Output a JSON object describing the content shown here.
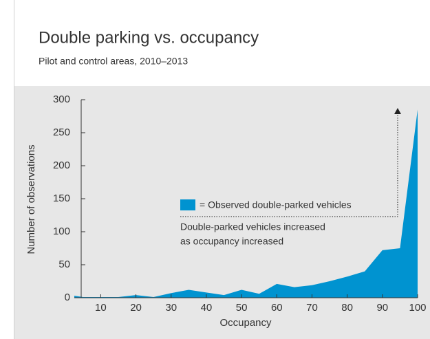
{
  "chart_data": {
    "type": "area",
    "title": "Double parking vs. occupancy",
    "subtitle": "Pilot and control areas, 2010–2013",
    "x_label": "Occupancy",
    "y_label": "Number of observations",
    "x": [
      2.5,
      5,
      10,
      15,
      20,
      25,
      30,
      35,
      40,
      45,
      50,
      55,
      60,
      65,
      70,
      75,
      80,
      85,
      90,
      95,
      100
    ],
    "series": [
      {
        "name": "= Observed double-parked vehicles",
        "color": "#0093d0",
        "values": [
          3,
          1,
          1,
          1,
          4,
          1,
          7,
          12,
          8,
          4,
          12,
          6,
          21,
          16,
          19,
          25,
          32,
          40,
          72,
          75,
          285
        ]
      }
    ],
    "annotation": [
      "Double-parked vehicles increased",
      "as occupancy increased"
    ],
    "xlim": [
      2.5,
      100
    ],
    "xticks": [
      10,
      20,
      30,
      40,
      50,
      60,
      70,
      80,
      90,
      100
    ],
    "ylim": [
      0,
      300
    ],
    "yticks": [
      0,
      50,
      100,
      150,
      200,
      250,
      300
    ]
  }
}
